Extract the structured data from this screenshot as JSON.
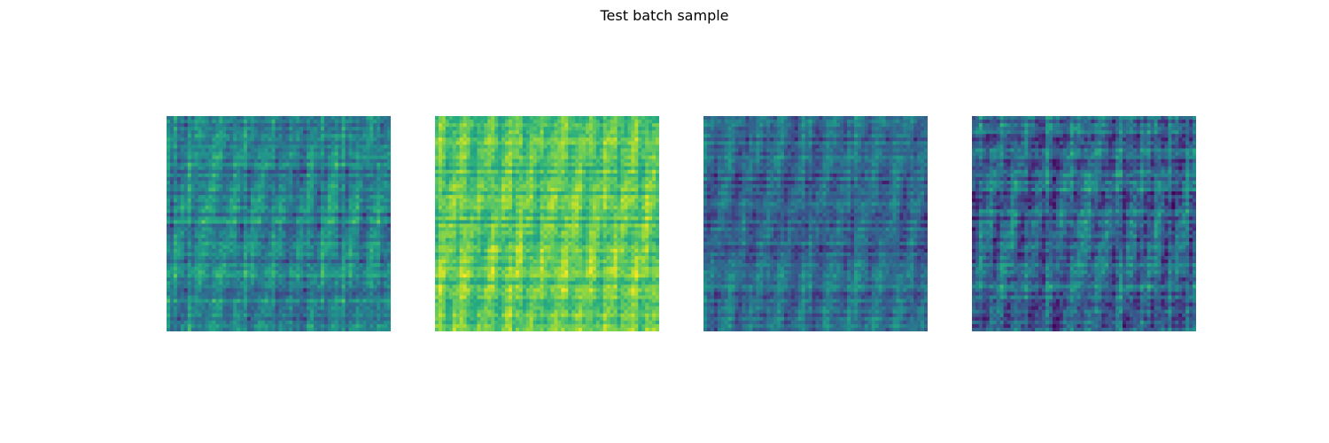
{
  "title": "Test batch sample",
  "colormap": "viridis",
  "chart_data": [
    {
      "type": "heatmap",
      "colormap": "viridis",
      "axes": "off",
      "grid": false,
      "value_range": [
        0,
        1
      ],
      "base_level": 0.45,
      "variation": 0.22,
      "horizontal_bands": [
        0.25,
        0.48,
        0.72
      ],
      "seed": 11
    },
    {
      "type": "heatmap",
      "colormap": "viridis",
      "axes": "off",
      "grid": false,
      "value_range": [
        0,
        1
      ],
      "base_level": 0.74,
      "variation": 0.18,
      "horizontal_bands": [
        0.22,
        0.5,
        0.73
      ],
      "seed": 23
    },
    {
      "type": "heatmap",
      "colormap": "viridis",
      "axes": "off",
      "grid": false,
      "value_range": [
        0,
        1
      ],
      "base_level": 0.35,
      "variation": 0.2,
      "horizontal_bands": [
        0.24,
        0.5,
        0.8
      ],
      "seed": 37
    },
    {
      "type": "heatmap",
      "colormap": "viridis",
      "axes": "off",
      "grid": false,
      "value_range": [
        0,
        1
      ],
      "base_level": 0.33,
      "variation": 0.26,
      "horizontal_bands": [
        0.27,
        0.52,
        0.78
      ],
      "seed": 53
    }
  ]
}
